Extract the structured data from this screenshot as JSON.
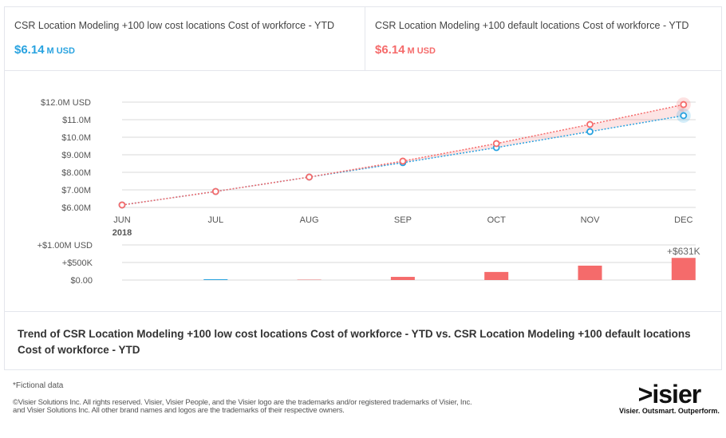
{
  "kpis": [
    {
      "title": "CSR Location Modeling +100 low cost locations Cost of workforce - YTD",
      "value": "$6.14",
      "unit1": "M",
      "unit2": "USD",
      "color": "#29a3e0"
    },
    {
      "title": "CSR Location Modeling +100 default locations Cost of workforce - YTD",
      "value": "$6.14",
      "unit1": "M",
      "unit2": "USD",
      "color": "#f56b6b"
    }
  ],
  "chart_data": [
    {
      "type": "line",
      "categories": [
        "JUN",
        "JUL",
        "AUG",
        "SEP",
        "OCT",
        "NOV",
        "DEC"
      ],
      "year_label": "2018",
      "yticks": [
        "$12.0M USD",
        "$11.0M",
        "$10.0M",
        "$9.00M",
        "$8.00M",
        "$7.00M",
        "$6.00M"
      ],
      "ylim": [
        6,
        12
      ],
      "grid": true,
      "series": [
        {
          "values": [
            6.14,
            6.91,
            7.73,
            8.55,
            9.41,
            10.32,
            11.23
          ],
          "color": "#29a3e0"
        },
        {
          "values": [
            6.14,
            6.91,
            7.73,
            8.64,
            9.64,
            10.73,
            11.86
          ],
          "color": "#f56b6b"
        }
      ]
    },
    {
      "type": "bar",
      "categories": [
        "JUN",
        "JUL",
        "AUG",
        "SEP",
        "OCT",
        "NOV",
        "DEC"
      ],
      "yticks": [
        "+$1.00M USD",
        "+$500K",
        "$0.00"
      ],
      "ylim": [
        0,
        1
      ],
      "values": [
        0,
        0.015,
        0.005,
        0.09,
        0.23,
        0.41,
        0.631
      ],
      "colors": [
        "#f56b6b",
        "#29a3e0",
        "#f56b6b",
        "#f56b6b",
        "#f56b6b",
        "#f56b6b",
        "#f56b6b"
      ],
      "annotation": "+$631K"
    }
  ],
  "description_title": "Trend of CSR Location Modeling +100 low cost locations Cost of workforce - YTD vs. CSR Location Modeling +100 default locations Cost of workforce - YTD",
  "footer": {
    "note": "*Fictional data",
    "copyright1": "©Visier Solutions Inc. All rights reserved. Visier, Visier People, and the Visier logo are the trademarks and/or registered trademarks of Visier, Inc.",
    "copyright2": "and Visier Solutions Inc. All other brand names and logos are the trademarks of their respective owners.",
    "logo": "visier",
    "tagline": "Visier. Outsmart. Outperform."
  }
}
